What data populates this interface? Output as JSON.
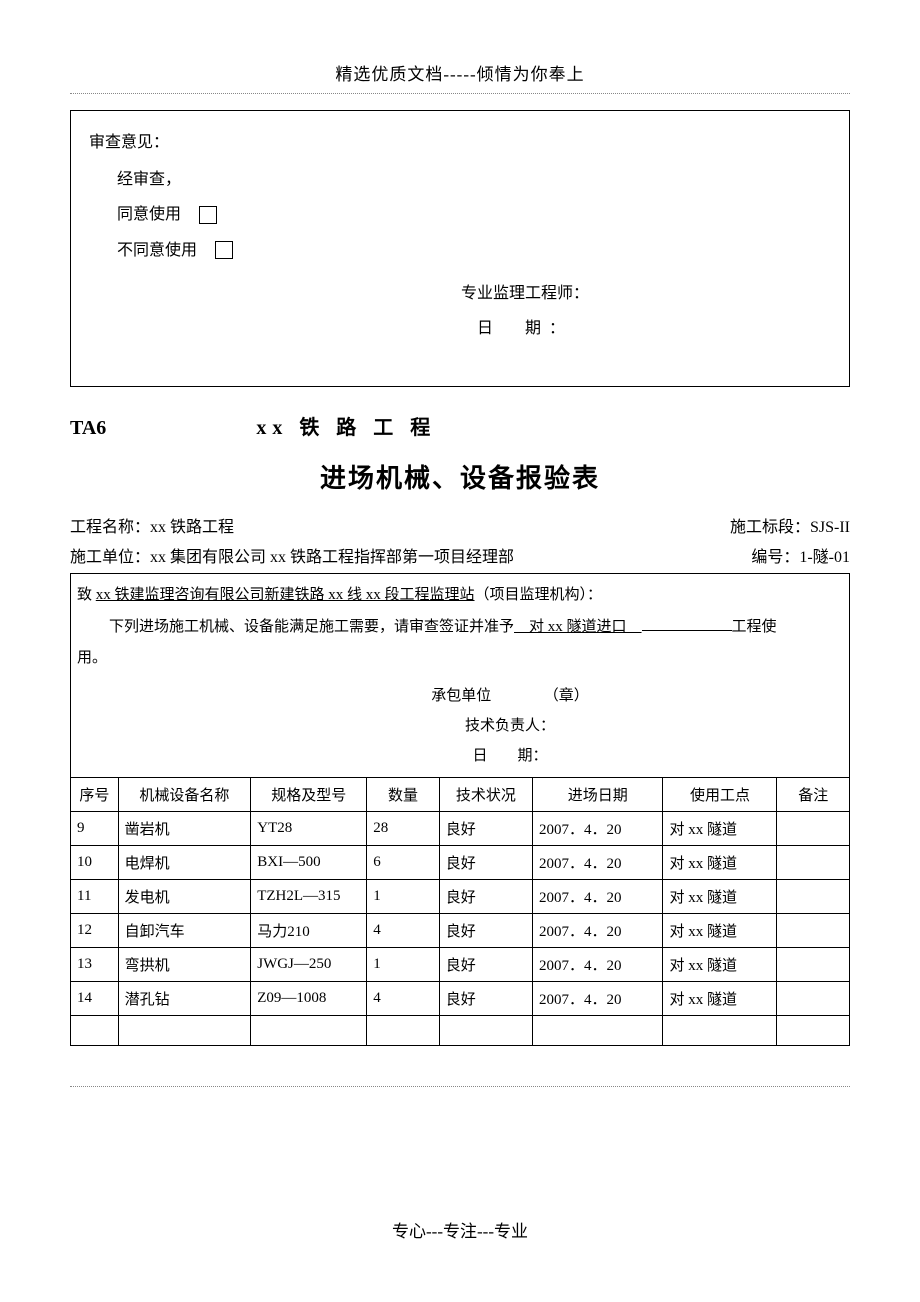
{
  "header": "精选优质文档-----倾情为你奉上",
  "footer": "专心---专注---专业",
  "review": {
    "title": "审查意见：",
    "line1": "经审查，",
    "agree": "同意使用",
    "disagree": "不同意使用",
    "engineer": "专业监理工程师：",
    "date_label": "日　期："
  },
  "title_row": {
    "code": "TA6",
    "railway": "xx 铁 路 工 程"
  },
  "form_title": "进场机械、设备报验表",
  "meta": {
    "project_label": "工程名称：",
    "project_value": "xx 铁路工程",
    "section_label": "施工标段：",
    "section_value": "SJS-II",
    "unit_label": "施工单位：",
    "unit_value": "xx 集团有限公司 xx 铁路工程指挥部第一项目经理部",
    "number_label": "编号：",
    "number_value": "1-隧-01"
  },
  "intro": {
    "to_prefix": "致 ",
    "to_org": "xx 铁建监理咨询有限公司新建铁路 xx 线 xx 段工程监理站",
    "to_suffix": "（项目监理机构）：",
    "body_prefix": "下列进场施工机械、设备能满足施工需要，请审查签证并准予",
    "fill_text": "　对 xx 隧道进口　",
    "body_suffix": "工程使",
    "body_end": "用。",
    "contractor": "承包单位　　　　（章）",
    "tech_lead": "技术负责人：",
    "date_label": "日　　期："
  },
  "table": {
    "headers": {
      "seq": "序号",
      "name": "机械设备名称",
      "spec": "规格及型号",
      "qty": "数量",
      "status": "技术状况",
      "date": "进场日期",
      "location": "使用工点",
      "remark": "备注"
    },
    "rows": [
      {
        "seq": "9",
        "name": "凿岩机",
        "spec": "YT28",
        "qty": "28",
        "status": "良好",
        "date": "2007．4．20",
        "location": "对 xx 隧道",
        "remark": ""
      },
      {
        "seq": "10",
        "name": "电焊机",
        "spec": "BXI—500",
        "qty": "6",
        "status": "良好",
        "date": "2007．4．20",
        "location": "对 xx 隧道",
        "remark": ""
      },
      {
        "seq": "11",
        "name": "发电机",
        "spec": "TZH2L—315",
        "qty": "1",
        "status": "良好",
        "date": "2007．4．20",
        "location": "对 xx 隧道",
        "remark": ""
      },
      {
        "seq": "12",
        "name": "自卸汽车",
        "spec": "马力210",
        "qty": "4",
        "status": "良好",
        "date": "2007．4．20",
        "location": "对 xx 隧道",
        "remark": ""
      },
      {
        "seq": "13",
        "name": "弯拱机",
        "spec": "JWGJ—250",
        "qty": "1",
        "status": "良好",
        "date": "2007．4．20",
        "location": "对 xx 隧道",
        "remark": ""
      },
      {
        "seq": "14",
        "name": "潜孔钻",
        "spec": "Z09—1008",
        "qty": "4",
        "status": "良好",
        "date": "2007．4．20",
        "location": "对 xx 隧道",
        "remark": ""
      }
    ]
  }
}
